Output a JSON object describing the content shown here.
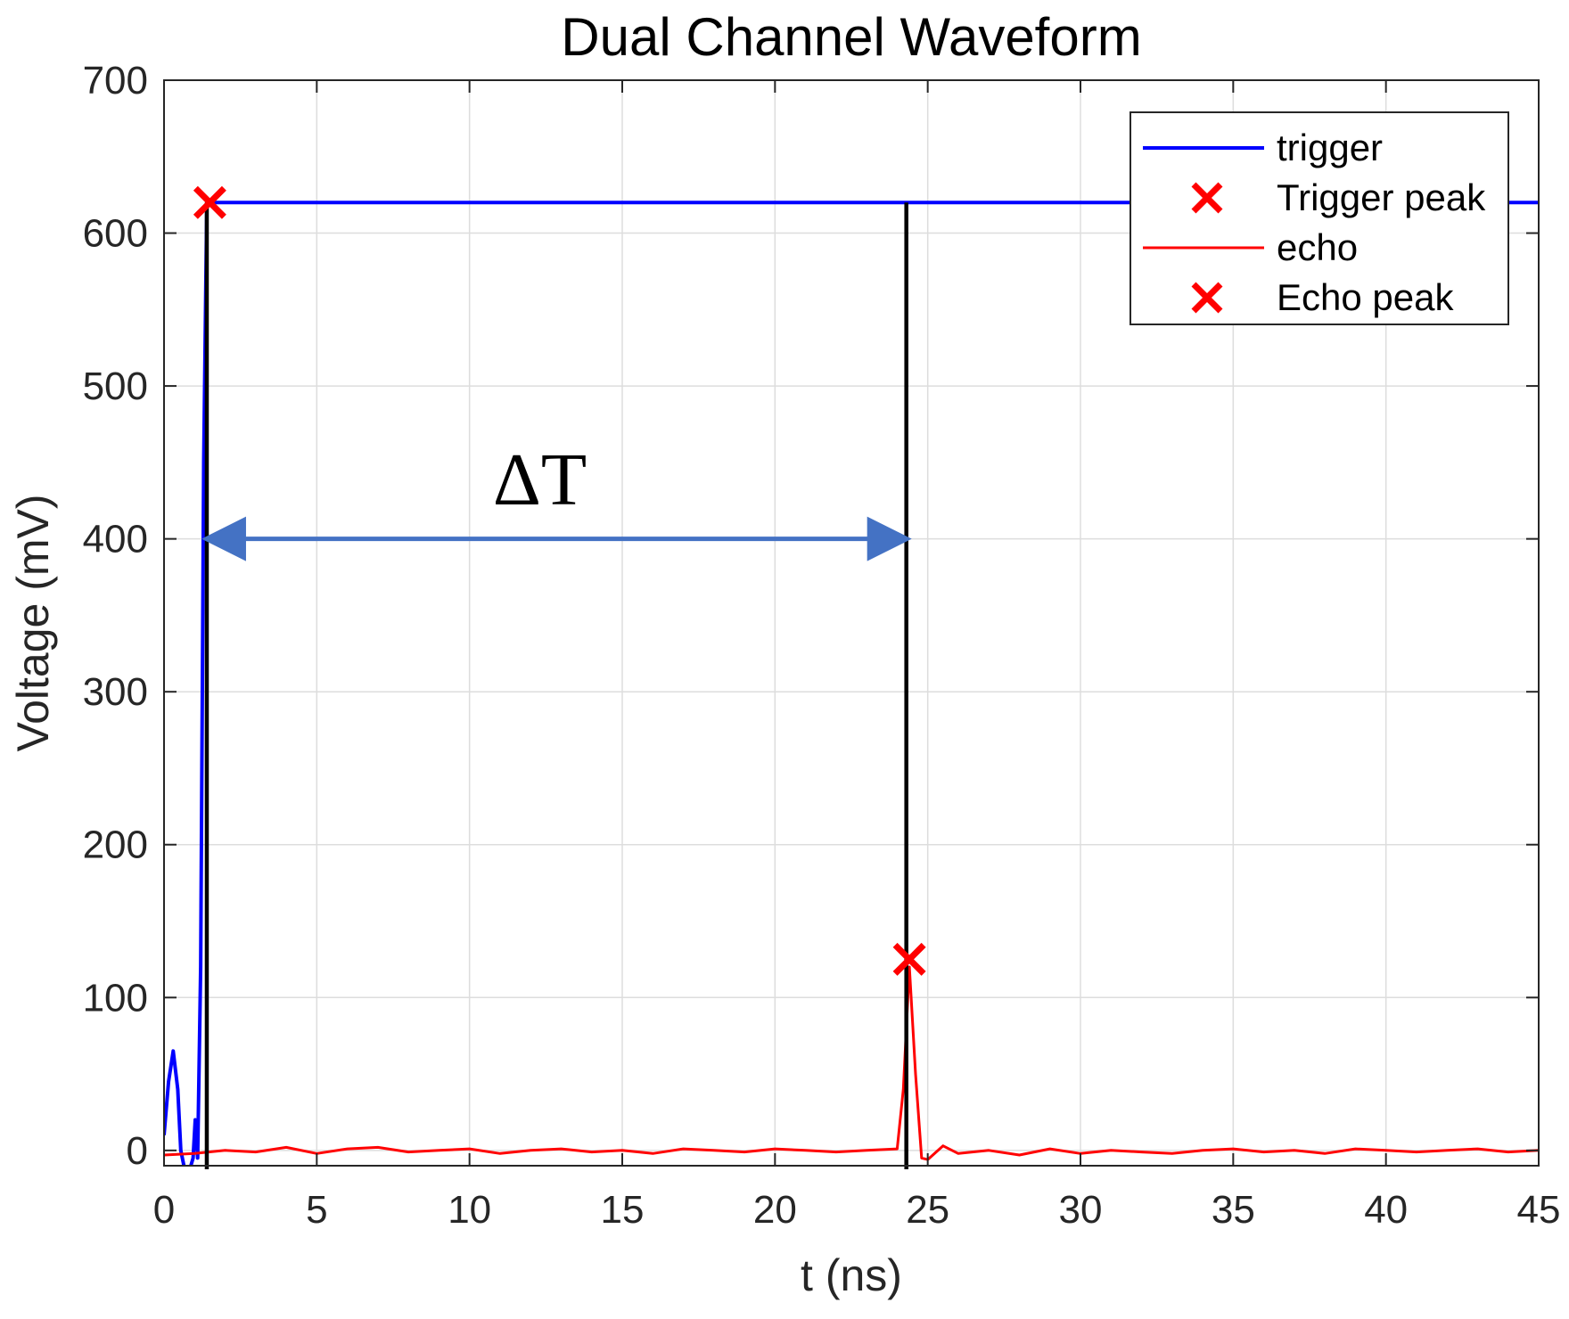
{
  "chart_data": {
    "type": "line",
    "title": "Dual Channel Waveform",
    "xlabel": "t (ns)",
    "ylabel": "Voltage (mV)",
    "xlim": [
      0,
      45
    ],
    "ylim": [
      -10,
      700
    ],
    "xticks": [
      0,
      5,
      10,
      15,
      20,
      25,
      30,
      35,
      40,
      45
    ],
    "yticks": [
      0,
      100,
      200,
      300,
      400,
      500,
      600,
      700
    ],
    "grid": true,
    "legend_position": "top-right",
    "colors": {
      "trigger": "#0000ff",
      "echo": "#ff0000",
      "marker": "#ff0000",
      "cursor": "#000000",
      "arrow": "#4472c4"
    },
    "series": [
      {
        "name": "trigger",
        "style": "line",
        "x": [
          0,
          0.15,
          0.3,
          0.45,
          0.55,
          0.65,
          0.75,
          0.85,
          0.95,
          1.02,
          1.1,
          1.2,
          1.3,
          1.4,
          45
        ],
        "y": [
          10,
          45,
          65,
          40,
          0,
          -10,
          -15,
          -12,
          -5,
          20,
          -5,
          120,
          450,
          620,
          620
        ]
      },
      {
        "name": "Trigger peak",
        "style": "marker",
        "x": [
          1.5
        ],
        "y": [
          620
        ]
      },
      {
        "name": "echo",
        "style": "line",
        "x": [
          0,
          1,
          2,
          3,
          4,
          5,
          6,
          7,
          8,
          9,
          10,
          11,
          12,
          13,
          14,
          15,
          16,
          17,
          18,
          19,
          20,
          21,
          22,
          23,
          24,
          24.2,
          24.4,
          24.6,
          24.8,
          25,
          25.5,
          26,
          27,
          28,
          29,
          30,
          31,
          32,
          33,
          34,
          35,
          36,
          37,
          38,
          39,
          40,
          41,
          42,
          43,
          44,
          45
        ],
        "y": [
          -3,
          -2,
          0,
          -1,
          2,
          -2,
          1,
          2,
          -1,
          0,
          1,
          -2,
          0,
          1,
          -1,
          0,
          -2,
          1,
          0,
          -1,
          1,
          0,
          -1,
          0,
          1,
          40,
          120,
          50,
          -5,
          -6,
          3,
          -2,
          0,
          -3,
          1,
          -2,
          0,
          -1,
          -2,
          0,
          1,
          -1,
          0,
          -2,
          1,
          0,
          -1,
          0,
          1,
          -1,
          0
        ]
      },
      {
        "name": "Echo peak",
        "style": "marker",
        "x": [
          24.4
        ],
        "y": [
          125
        ]
      }
    ],
    "cursors": [
      {
        "x": 1.4,
        "y_top": 620
      },
      {
        "x": 24.3,
        "y_top": 620
      }
    ],
    "annotation": {
      "text": "ΔT",
      "arrow_y": 400,
      "arrow_x_start": 1.4,
      "arrow_x_end": 24.3,
      "text_x": 12.3,
      "text_y": 440
    }
  }
}
